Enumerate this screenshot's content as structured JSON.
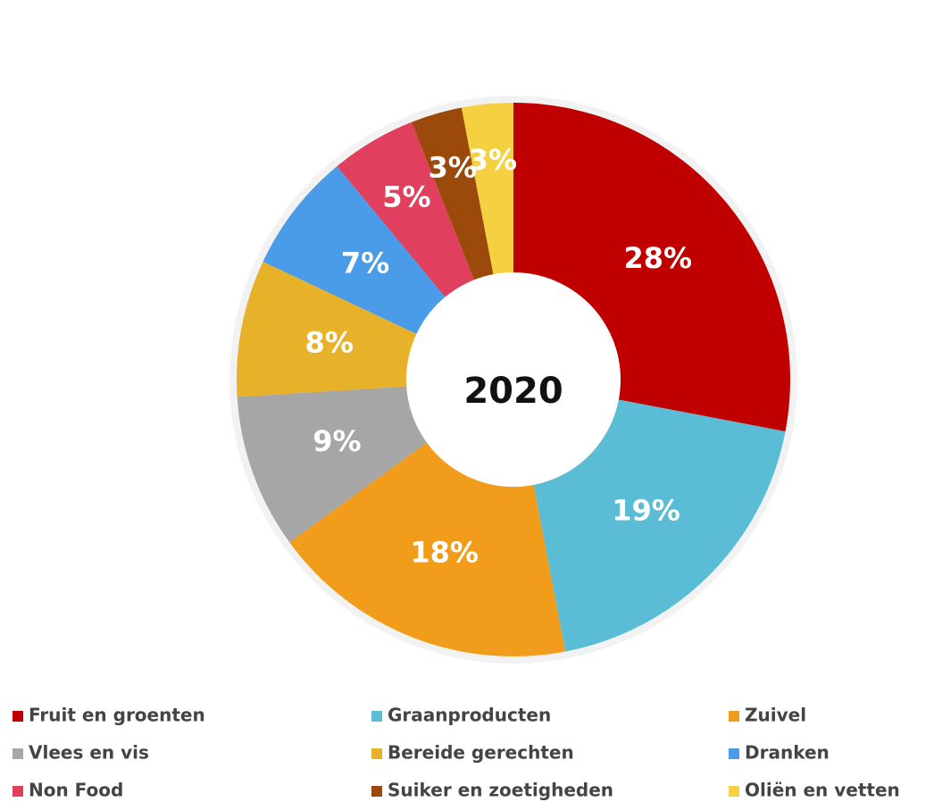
{
  "chart_data": {
    "type": "pie",
    "center_text": "2020",
    "categories": [
      "Fruit en groenten",
      "Graanproducten",
      "Zuivel",
      "Vlees en vis",
      "Bereide gerechten",
      "Dranken",
      "Non Food",
      "Suiker en zoetigheden",
      "Oliën en vetten"
    ],
    "values": [
      28,
      19,
      18,
      9,
      8,
      7,
      5,
      3,
      3
    ],
    "value_labels": [
      "28%",
      "19%",
      "18%",
      "9%",
      "8%",
      "7%",
      "5%",
      "3%",
      "3%"
    ],
    "colors": [
      "#c00000",
      "#5bbcd6",
      "#f29c1b",
      "#a6a6a6",
      "#e8b12a",
      "#4a9be8",
      "#e0405e",
      "#9c4a0b",
      "#f5d142"
    ],
    "legend": "bottom"
  }
}
